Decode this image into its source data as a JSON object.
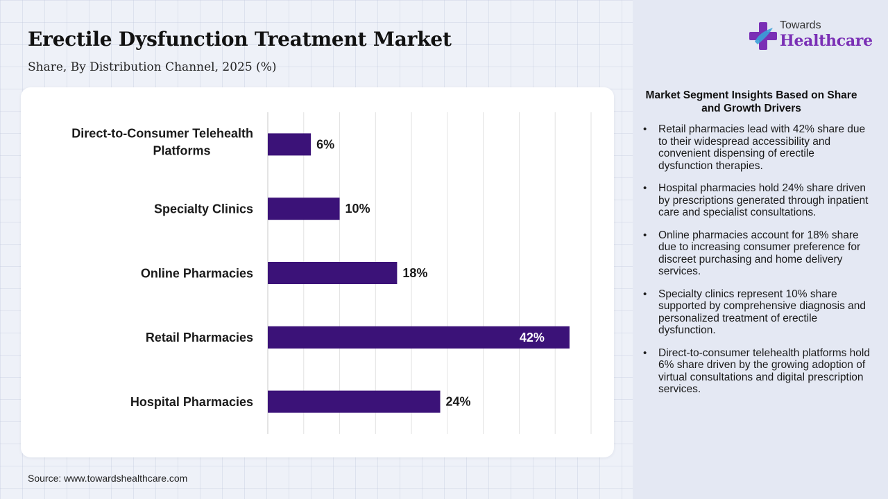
{
  "header": {
    "title": "Erectile Dysfunction Treatment Market",
    "subtitle": "Share, By Distribution Channel, 2025 (%)"
  },
  "logo": {
    "top_text": "Towards",
    "bottom_text": "Healthcare",
    "icon": "cross-plus-icon",
    "colors": {
      "primary": "#7a2fb5",
      "secondary": "#3aa0d8"
    }
  },
  "chart_data": {
    "type": "bar",
    "orientation": "horizontal",
    "categories": [
      "Direct-to-Consumer Telehealth Platforms",
      "Specialty Clinics",
      "Online Pharmacies",
      "Retail Pharmacies",
      "Hospital Pharmacies"
    ],
    "values": [
      6,
      10,
      18,
      42,
      24
    ],
    "data_labels": [
      "6%",
      "10%",
      "18%",
      "42%",
      "24%"
    ],
    "xlim": [
      0,
      45
    ],
    "grid": true,
    "bar_color": "#3b1278",
    "title": "",
    "xlabel": "",
    "ylabel": ""
  },
  "insights": {
    "heading": "Market Segment Insights Based on Share and Growth Drivers",
    "items": [
      "Retail pharmacies lead with 42% share due to their widespread accessibility and convenient dispensing of erectile dysfunction therapies.",
      "Hospital pharmacies hold 24% share driven by prescriptions generated through inpatient care and specialist consultations.",
      "Online pharmacies account for 18% share due to increasing consumer preference for discreet purchasing and home delivery services.",
      "Specialty clinics represent 10% share supported by comprehensive diagnosis and personalized treatment of erectile dysfunction.",
      "Direct-to-consumer telehealth platforms hold 6% share driven by the growing adoption of virtual consultations and digital prescription services."
    ]
  },
  "footer": {
    "source": "Source: www.towardshealthcare.com"
  }
}
